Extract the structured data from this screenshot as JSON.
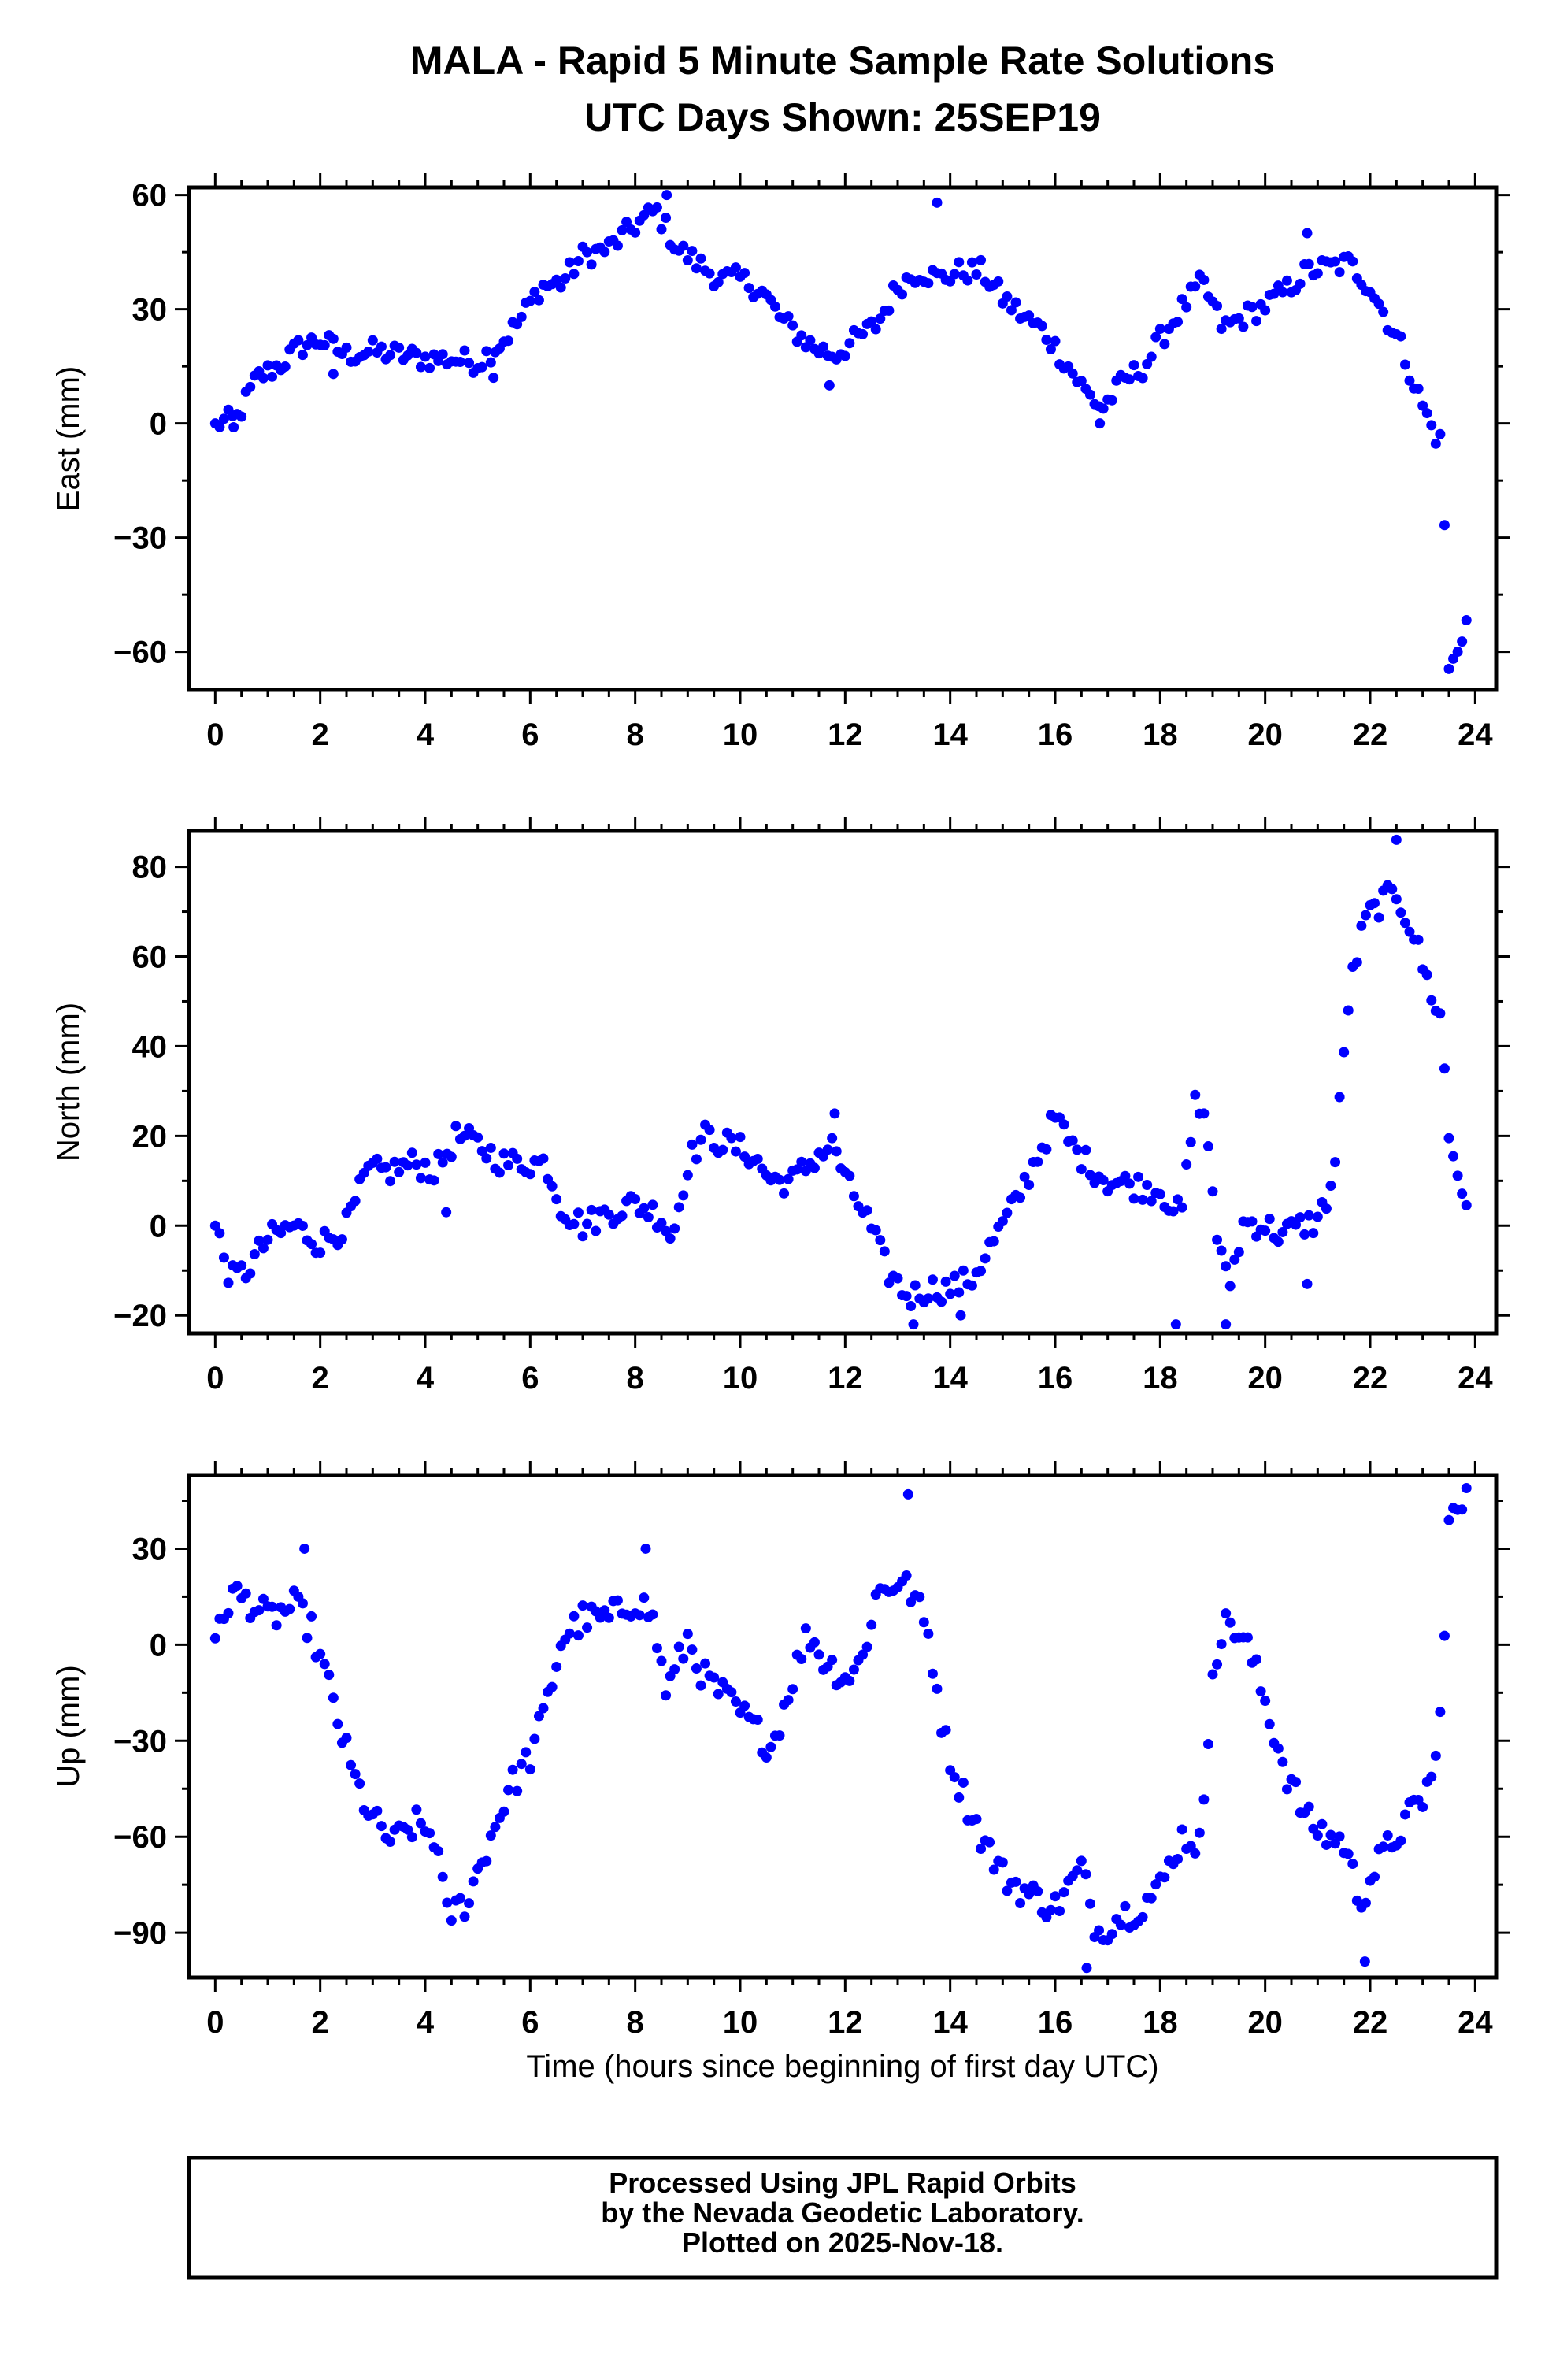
{
  "title": {
    "line1": "MALA - Rapid 5 Minute Sample Rate Solutions",
    "line2": "UTC Days Shown:  25SEP19"
  },
  "footer": {
    "line1": "Processed Using JPL Rapid Orbits",
    "line2": "by the Nevada Geodetic Laboratory.",
    "line3": "Plotted on 2025-Nov-18."
  },
  "colors": {
    "points": "#0000ff",
    "frame": "#000000",
    "background": "#ffffff"
  },
  "chart_data": [
    {
      "type": "scatter",
      "xlabel": "",
      "ylabel": "East (mm)",
      "xlim": [
        -0.5,
        24.4
      ],
      "ylim": [
        -70,
        62
      ],
      "xticks": [
        0,
        2,
        4,
        6,
        8,
        10,
        12,
        14,
        16,
        18,
        20,
        22,
        24
      ],
      "yticks": [
        -60,
        -30,
        0,
        30,
        60
      ],
      "series": [
        {
          "keypoints": [
            [
              0,
              0
            ],
            [
              0.4,
              1
            ],
            [
              0.8,
              12
            ],
            [
              1.2,
              15
            ],
            [
              1.6,
              20
            ],
            [
              2,
              22
            ],
            [
              2.5,
              18
            ],
            [
              3,
              19
            ],
            [
              3.5,
              18
            ],
            [
              4,
              17
            ],
            [
              4.5,
              17
            ],
            [
              5,
              16
            ],
            [
              5.5,
              22
            ],
            [
              5.8,
              27
            ],
            [
              6.2,
              36
            ],
            [
              6.6,
              37
            ],
            [
              7,
              44
            ],
            [
              7.5,
              46
            ],
            [
              8,
              52
            ],
            [
              8.4,
              56
            ],
            [
              8.8,
              46
            ],
            [
              9.2,
              42
            ],
            [
              9.6,
              38
            ],
            [
              10,
              38
            ],
            [
              10.4,
              35
            ],
            [
              10.8,
              27
            ],
            [
              11.4,
              20
            ],
            [
              11.8,
              18
            ],
            [
              12.2,
              22
            ],
            [
              12.6,
              26
            ],
            [
              13,
              36
            ],
            [
              13.4,
              40
            ],
            [
              13.8,
              38
            ],
            [
              14.2,
              40
            ],
            [
              14.6,
              40
            ],
            [
              15,
              33
            ],
            [
              15.4,
              28
            ],
            [
              15.8,
              24
            ],
            [
              16.2,
              16
            ],
            [
              16.6,
              8
            ],
            [
              16.9,
              4
            ],
            [
              17.3,
              11
            ],
            [
              17.7,
              15
            ],
            [
              18,
              22
            ],
            [
              18.4,
              30
            ],
            [
              18.8,
              37
            ],
            [
              19.2,
              25
            ],
            [
              19.6,
              28
            ],
            [
              20,
              31
            ],
            [
              20.4,
              35
            ],
            [
              20.8,
              40
            ],
            [
              21.2,
              41
            ],
            [
              21.6,
              42
            ],
            [
              22,
              36
            ],
            [
              22.3,
              28
            ],
            [
              22.6,
              20
            ],
            [
              22.9,
              8
            ],
            [
              23.2,
              -2
            ],
            [
              23.4,
              -6
            ],
            [
              23.45,
              -67
            ],
            [
              23.6,
              -62
            ],
            [
              23.75,
              -55
            ],
            [
              23.9,
              -50
            ]
          ],
          "outliers": [
            [
              11.7,
              10
            ],
            [
              13.75,
              58
            ],
            [
              8.6,
              60
            ],
            [
              20.8,
              50
            ],
            [
              2.25,
              13
            ],
            [
              5.3,
              12
            ],
            [
              16.85,
              0
            ],
            [
              0.35,
              -1
            ]
          ]
        }
      ]
    },
    {
      "type": "scatter",
      "xlabel": "",
      "ylabel": "North (mm)",
      "xlim": [
        -0.5,
        24.4
      ],
      "ylim": [
        -24,
        88
      ],
      "xticks": [
        0,
        2,
        4,
        6,
        8,
        10,
        12,
        14,
        16,
        18,
        20,
        22,
        24
      ],
      "yticks": [
        -20,
        0,
        20,
        40,
        60,
        80
      ],
      "series": [
        {
          "keypoints": [
            [
              0,
              0
            ],
            [
              0.3,
              -12
            ],
            [
              0.6,
              -10
            ],
            [
              1,
              -3
            ],
            [
              1.5,
              0
            ],
            [
              2,
              -4
            ],
            [
              2.5,
              0
            ],
            [
              2.9,
              12
            ],
            [
              3.3,
              12
            ],
            [
              3.8,
              14
            ],
            [
              4.2,
              12
            ],
            [
              4.6,
              20
            ],
            [
              5,
              18
            ],
            [
              5.5,
              14
            ],
            [
              6,
              14
            ],
            [
              6.3,
              14
            ],
            [
              6.6,
              4
            ],
            [
              7,
              0
            ],
            [
              7.5,
              3
            ],
            [
              8,
              5
            ],
            [
              8.5,
              2
            ],
            [
              8.7,
              -3
            ],
            [
              9,
              14
            ],
            [
              9.3,
              20
            ],
            [
              9.8,
              18
            ],
            [
              10.2,
              16
            ],
            [
              10.6,
              10
            ],
            [
              11,
              10
            ],
            [
              11.5,
              16
            ],
            [
              11.8,
              18
            ],
            [
              12,
              10
            ],
            [
              12.4,
              2
            ],
            [
              12.8,
              -10
            ],
            [
              13.2,
              -16
            ],
            [
              13.6,
              -14
            ],
            [
              14,
              -14
            ],
            [
              14.4,
              -12
            ],
            [
              14.8,
              -4
            ],
            [
              15.2,
              4
            ],
            [
              15.6,
              14
            ],
            [
              16,
              24
            ],
            [
              16.3,
              18
            ],
            [
              16.6,
              14
            ],
            [
              17,
              10
            ],
            [
              17.5,
              9
            ],
            [
              18,
              8
            ],
            [
              18.4,
              2
            ],
            [
              18.7,
              30
            ],
            [
              18.9,
              20
            ],
            [
              19.1,
              -4
            ],
            [
              19.3,
              -14
            ],
            [
              19.6,
              1
            ],
            [
              20,
              0
            ],
            [
              20.3,
              -2
            ],
            [
              20.7,
              0
            ],
            [
              21,
              1
            ],
            [
              21.3,
              10
            ],
            [
              21.6,
              52
            ],
            [
              21.9,
              68
            ],
            [
              22.2,
              72
            ],
            [
              22.5,
              74
            ],
            [
              22.8,
              66
            ],
            [
              23.1,
              54
            ],
            [
              23.35,
              46
            ],
            [
              23.5,
              20
            ],
            [
              23.7,
              10
            ],
            [
              23.9,
              4
            ]
          ],
          "outliers": [
            [
              18.3,
              -22
            ],
            [
              19.25,
              -22
            ],
            [
              20.8,
              -13
            ],
            [
              22.5,
              86
            ],
            [
              13.3,
              -22
            ],
            [
              14.2,
              -20
            ],
            [
              11.8,
              25
            ],
            [
              4.4,
              3
            ]
          ]
        }
      ]
    },
    {
      "type": "scatter",
      "xlabel": "Time (hours since beginning of first day UTC)",
      "ylabel": "Up (mm)",
      "xlim": [
        -0.5,
        24.4
      ],
      "ylim": [
        -104,
        53
      ],
      "xticks": [
        0,
        2,
        4,
        6,
        8,
        10,
        12,
        14,
        16,
        18,
        20,
        22,
        24
      ],
      "yticks": [
        -90,
        -60,
        -30,
        0,
        30
      ],
      "series": [
        {
          "keypoints": [
            [
              0,
              2
            ],
            [
              0.3,
              16
            ],
            [
              0.7,
              13
            ],
            [
              1,
              8
            ],
            [
              1.5,
              12
            ],
            [
              1.8,
              6
            ],
            [
              2.2,
              -15
            ],
            [
              2.6,
              -40
            ],
            [
              3,
              -55
            ],
            [
              3.4,
              -62
            ],
            [
              3.8,
              -56
            ],
            [
              4.2,
              -60
            ],
            [
              4.4,
              -85
            ],
            [
              4.8,
              -80
            ],
            [
              5.2,
              -62
            ],
            [
              5.6,
              -45
            ],
            [
              6,
              -35
            ],
            [
              6.3,
              -20
            ],
            [
              6.6,
              2
            ],
            [
              7,
              8
            ],
            [
              7.5,
              8
            ],
            [
              8,
              14
            ],
            [
              8.3,
              10
            ],
            [
              8.6,
              -15
            ],
            [
              9,
              2
            ],
            [
              9.3,
              -10
            ],
            [
              9.8,
              -18
            ],
            [
              10.2,
              -25
            ],
            [
              10.6,
              -32
            ],
            [
              11,
              -10
            ],
            [
              11.3,
              4
            ],
            [
              11.6,
              -5
            ],
            [
              12,
              -10
            ],
            [
              12.3,
              -6
            ],
            [
              12.6,
              16
            ],
            [
              13,
              20
            ],
            [
              13.3,
              16
            ],
            [
              13.6,
              2
            ],
            [
              13.9,
              -30
            ],
            [
              14.2,
              -45
            ],
            [
              14.6,
              -60
            ],
            [
              15,
              -72
            ],
            [
              15.5,
              -78
            ],
            [
              16,
              -82
            ],
            [
              16.5,
              -70
            ],
            [
              16.8,
              -90
            ],
            [
              17.2,
              -85
            ],
            [
              17.6,
              -82
            ],
            [
              18,
              -76
            ],
            [
              18.4,
              -60
            ],
            [
              18.8,
              -62
            ],
            [
              19,
              -5
            ],
            [
              19.3,
              8
            ],
            [
              19.7,
              -2
            ],
            [
              20,
              -18
            ],
            [
              20.4,
              -40
            ],
            [
              20.8,
              -55
            ],
            [
              21.2,
              -60
            ],
            [
              21.5,
              -62
            ],
            [
              21.8,
              -80
            ],
            [
              22.1,
              -70
            ],
            [
              22.4,
              -62
            ],
            [
              22.7,
              -55
            ],
            [
              23,
              -48
            ],
            [
              23.3,
              -35
            ],
            [
              23.5,
              38
            ],
            [
              23.7,
              42
            ],
            [
              23.9,
              46
            ]
          ],
          "outliers": [
            [
              1.7,
              30
            ],
            [
              13.2,
              47
            ],
            [
              21.9,
              -99
            ],
            [
              16.6,
              -101
            ],
            [
              8.2,
              30
            ]
          ]
        }
      ]
    }
  ]
}
